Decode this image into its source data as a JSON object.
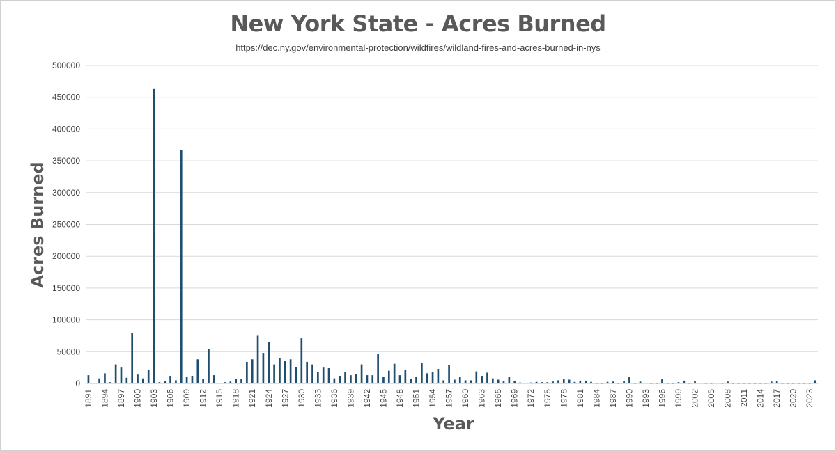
{
  "chart_data": {
    "type": "bar",
    "title": "New York State - Acres Burned",
    "subtitle": "https://dec.ny.gov/environmental-protection/wildfires/wildland-fires-and-acres-burned-in-nys",
    "xlabel": "Year",
    "ylabel": "Acres Burned",
    "ylim": [
      0,
      500000
    ],
    "y_ticks": [
      0,
      50000,
      100000,
      150000,
      200000,
      250000,
      300000,
      350000,
      400000,
      450000,
      500000
    ],
    "grid": true,
    "legend": "none",
    "bar_color": "#1F4E6E",
    "x_tick_labels": [
      "1891",
      "1894",
      "1897",
      "1900",
      "1903",
      "1906",
      "1909",
      "1912",
      "1915",
      "1918",
      "1921",
      "1924",
      "1927",
      "1930",
      "1933",
      "1936",
      "1939",
      "1942",
      "1945",
      "1948",
      "1951",
      "1954",
      "1957",
      "1960",
      "1963",
      "1966",
      "1969",
      "1972",
      "1975",
      "1978",
      "1981",
      "1984",
      "1987",
      "1990",
      "1993",
      "1996",
      "1999",
      "2002",
      "2005",
      "2008",
      "2011",
      "2014",
      "2017",
      "2020",
      "2023"
    ],
    "categories": [
      1891,
      1892,
      1893,
      1894,
      1895,
      1896,
      1897,
      1898,
      1899,
      1900,
      1901,
      1902,
      1903,
      1904,
      1905,
      1906,
      1907,
      1908,
      1909,
      1910,
      1911,
      1912,
      1913,
      1914,
      1915,
      1916,
      1917,
      1918,
      1919,
      1920,
      1921,
      1922,
      1923,
      1924,
      1925,
      1926,
      1927,
      1928,
      1929,
      1930,
      1931,
      1932,
      1933,
      1934,
      1935,
      1936,
      1937,
      1938,
      1939,
      1940,
      1941,
      1942,
      1943,
      1944,
      1945,
      1946,
      1947,
      1948,
      1949,
      1950,
      1951,
      1952,
      1953,
      1954,
      1955,
      1956,
      1957,
      1958,
      1959,
      1960,
      1961,
      1962,
      1963,
      1964,
      1965,
      1966,
      1967,
      1968,
      1969,
      1970,
      1971,
      1972,
      1973,
      1974,
      1975,
      1976,
      1977,
      1978,
      1979,
      1980,
      1981,
      1982,
      1983,
      1984,
      1985,
      1986,
      1987,
      1988,
      1989,
      1990,
      1991,
      1992,
      1993,
      1994,
      1995,
      1996,
      1997,
      1998,
      1999,
      2000,
      2001,
      2002,
      2003,
      2004,
      2005,
      2006,
      2007,
      2008,
      2009,
      2010,
      2011,
      2012,
      2013,
      2014,
      2015,
      2016,
      2017,
      2018,
      2019,
      2020,
      2021,
      2022,
      2023,
      2024
    ],
    "values": [
      13000,
      0,
      8000,
      16000,
      2000,
      30000,
      25000,
      9000,
      79000,
      14000,
      8000,
      21000,
      463000,
      2000,
      4000,
      12000,
      5000,
      367000,
      11000,
      12000,
      38000,
      7000,
      54000,
      13000,
      0,
      2000,
      3000,
      7000,
      7000,
      34000,
      38000,
      75000,
      48000,
      65000,
      30000,
      40000,
      36000,
      38000,
      26000,
      71000,
      34000,
      30000,
      18000,
      25000,
      24000,
      8000,
      12000,
      18000,
      13000,
      15000,
      30000,
      13000,
      13000,
      47000,
      10000,
      20000,
      31000,
      13000,
      21000,
      7000,
      11000,
      32000,
      16000,
      18000,
      23000,
      5000,
      29000,
      6000,
      10000,
      5000,
      5000,
      19000,
      12000,
      17000,
      8000,
      6000,
      4000,
      10000,
      4000,
      1500,
      1000,
      1500,
      2500,
      2000,
      2000,
      3000,
      5000,
      6500,
      6000,
      2500,
      4500,
      4500,
      2500,
      500,
      500,
      2500,
      3000,
      500,
      4000,
      10000,
      500,
      3000,
      1000,
      500,
      500,
      6500,
      500,
      500,
      2000,
      4500,
      500,
      3500,
      1000,
      500,
      500,
      1000,
      500,
      3000,
      500,
      500,
      500,
      500,
      500,
      500,
      500,
      3000,
      4000,
      500,
      500,
      500,
      500,
      500,
      500,
      5000
    ]
  }
}
